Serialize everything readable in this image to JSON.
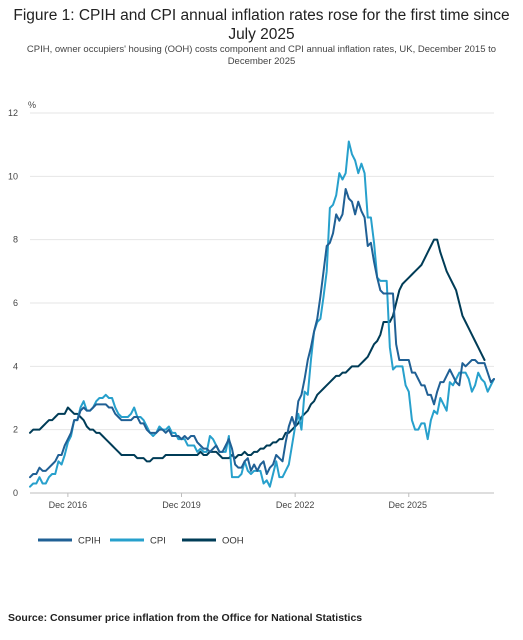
{
  "header": {
    "title": "Figure 1: CPIH and CPI annual inflation rates rose for the first time since July 2025",
    "subtitle": "CPIH, owner occupiers' housing (OOH) costs component and CPI annual inflation rates, UK, December 2015 to December 2025"
  },
  "footer": {
    "source": "Source: Consumer price inflation from the Office for National Statistics"
  },
  "chart_data": {
    "type": "line",
    "title": "Figure 1: CPIH and CPI annual inflation rates rose for the first time since July 2025",
    "subtitle": "CPIH, owner occupiers' housing (OOH) costs component and CPI annual inflation rates, UK, December 2015 to December 2025",
    "ylabel": "%",
    "xlabel": "",
    "ylim": [
      0,
      12
    ],
    "yticks": [
      "0",
      "2",
      "4",
      "6",
      "8",
      "10",
      "12"
    ],
    "x_start": "Dec 2015",
    "x_end": "Dec 2025",
    "xticks": [
      "Dec 2016",
      "Dec 2019",
      "Dec 2022",
      "Dec 2025"
    ],
    "grid": "horizontal",
    "legend_position": "bottom-left",
    "colors": {
      "CPIH": "#206095",
      "CPI": "#27a0cc",
      "OOH": "#003c57"
    },
    "series": [
      {
        "name": "CPIH",
        "values": [
          0.5,
          0.6,
          0.6,
          0.8,
          0.7,
          0.7,
          0.8,
          0.9,
          1.0,
          1.2,
          1.2,
          1.5,
          1.7,
          1.9,
          2.3,
          2.3,
          2.6,
          2.7,
          2.6,
          2.6,
          2.7,
          2.8,
          2.8,
          2.8,
          2.8,
          2.7,
          2.7,
          2.5,
          2.4,
          2.3,
          2.3,
          2.3,
          2.3,
          2.4,
          2.4,
          2.2,
          2.2,
          2.0,
          1.9,
          1.9,
          1.9,
          2.0,
          2.0,
          1.9,
          2.0,
          1.8,
          1.8,
          1.8,
          1.7,
          1.8,
          1.7,
          1.8,
          1.8,
          1.6,
          1.5,
          1.4,
          1.4,
          1.3,
          1.4,
          1.5,
          1.3,
          1.3,
          1.5,
          1.7,
          1.4,
          0.9,
          0.8,
          0.8,
          1.0,
          1.1,
          0.7,
          0.9,
          0.7,
          0.9,
          1.0,
          0.6,
          0.8,
          0.9,
          1.2,
          1.1,
          1.0,
          1.6,
          2.1,
          2.4,
          2.1,
          2.9,
          3.1,
          3.6,
          4.2,
          4.6,
          5.1,
          5.5,
          6.2,
          7.0,
          7.8,
          7.9,
          8.2,
          8.8,
          8.6,
          8.8,
          9.6,
          9.3,
          9.2,
          8.8,
          9.2,
          8.9,
          8.7,
          7.8,
          7.9,
          7.3,
          6.8,
          6.4,
          6.3,
          6.3,
          6.3,
          6.3,
          4.7,
          4.2,
          4.2,
          4.2,
          4.2,
          3.8,
          3.8,
          3.6,
          3.4,
          3.4,
          3.1,
          3.1,
          2.8,
          3.2,
          3.5,
          3.5,
          3.7,
          3.9,
          3.7,
          3.5,
          3.4,
          4.1,
          4.0,
          4.1,
          4.2,
          4.2,
          4.1,
          4.1,
          4.1,
          3.8,
          3.5,
          3.6
        ]
      },
      {
        "name": "CPI",
        "values": [
          0.2,
          0.3,
          0.3,
          0.5,
          0.3,
          0.3,
          0.5,
          0.6,
          0.6,
          1.0,
          0.9,
          1.2,
          1.6,
          1.8,
          2.3,
          2.3,
          2.7,
          2.9,
          2.6,
          2.6,
          2.7,
          2.9,
          3.0,
          3.0,
          3.1,
          3.0,
          3.0,
          2.7,
          2.5,
          2.4,
          2.4,
          2.4,
          2.5,
          2.7,
          2.4,
          2.4,
          2.3,
          2.1,
          1.9,
          1.8,
          1.9,
          2.1,
          2.0,
          2.0,
          2.1,
          1.9,
          1.9,
          1.7,
          1.7,
          1.7,
          1.5,
          1.5,
          1.5,
          1.3,
          1.4,
          1.3,
          1.3,
          1.8,
          1.7,
          1.5,
          1.3,
          1.3,
          1.3,
          1.8,
          0.5,
          0.5,
          0.5,
          0.6,
          1.0,
          0.7,
          0.6,
          0.7,
          0.7,
          0.7,
          0.3,
          0.4,
          0.2,
          0.6,
          1.0,
          0.5,
          0.5,
          0.7,
          0.9,
          1.5,
          2.1,
          2.5,
          2.0,
          3.2,
          3.1,
          4.2,
          5.1,
          5.4,
          5.5,
          6.2,
          7.0,
          9.0,
          9.1,
          9.4,
          10.1,
          9.9,
          10.1,
          11.1,
          10.7,
          10.5,
          10.1,
          10.4,
          10.1,
          8.7,
          8.7,
          7.9,
          6.8,
          6.7,
          6.7,
          6.7,
          4.6,
          3.9,
          4.0,
          4.0,
          4.0,
          3.4,
          3.2,
          2.3,
          2.0,
          2.0,
          2.2,
          2.2,
          1.7,
          2.3,
          2.6,
          2.5,
          3.0,
          2.8,
          2.6,
          3.5,
          3.4,
          3.6,
          3.8,
          3.8,
          3.8,
          3.6,
          3.2,
          3.4,
          3.8,
          3.6,
          3.5,
          3.2,
          3.4,
          3.6
        ]
      },
      {
        "name": "OOH",
        "values": [
          1.9,
          2.0,
          2.0,
          2.0,
          2.1,
          2.2,
          2.3,
          2.3,
          2.4,
          2.5,
          2.5,
          2.5,
          2.7,
          2.6,
          2.5,
          2.5,
          2.4,
          2.3,
          2.1,
          2.0,
          2.0,
          1.9,
          1.9,
          1.8,
          1.7,
          1.6,
          1.5,
          1.4,
          1.3,
          1.2,
          1.2,
          1.2,
          1.2,
          1.2,
          1.1,
          1.1,
          1.1,
          1.0,
          1.0,
          1.1,
          1.1,
          1.1,
          1.1,
          1.2,
          1.2,
          1.2,
          1.2,
          1.2,
          1.2,
          1.2,
          1.2,
          1.2,
          1.2,
          1.2,
          1.3,
          1.2,
          1.2,
          1.3,
          1.3,
          1.3,
          1.2,
          1.1,
          1.1,
          1.1,
          1.2,
          1.1,
          1.2,
          1.2,
          1.3,
          1.2,
          1.2,
          1.3,
          1.3,
          1.4,
          1.4,
          1.5,
          1.5,
          1.6,
          1.6,
          1.7,
          1.7,
          1.9,
          1.9,
          2.0,
          2.1,
          2.2,
          2.4,
          2.5,
          2.6,
          2.8,
          2.9,
          3.1,
          3.2,
          3.3,
          3.4,
          3.5,
          3.6,
          3.7,
          3.7,
          3.8,
          3.8,
          3.9,
          4.0,
          4.0,
          4.0,
          4.1,
          4.2,
          4.3,
          4.5,
          4.7,
          4.8,
          5.0,
          5.4,
          5.4,
          5.4,
          5.6,
          6.0,
          6.4,
          6.6,
          6.7,
          6.8,
          6.9,
          7.0,
          7.1,
          7.2,
          7.4,
          7.6,
          7.8,
          8.0,
          8.0,
          7.6,
          7.3,
          7.0,
          6.8,
          6.6,
          6.4,
          6.0,
          5.6,
          5.4,
          5.2,
          5.0,
          4.8,
          4.6,
          4.4,
          4.2
        ]
      }
    ]
  }
}
